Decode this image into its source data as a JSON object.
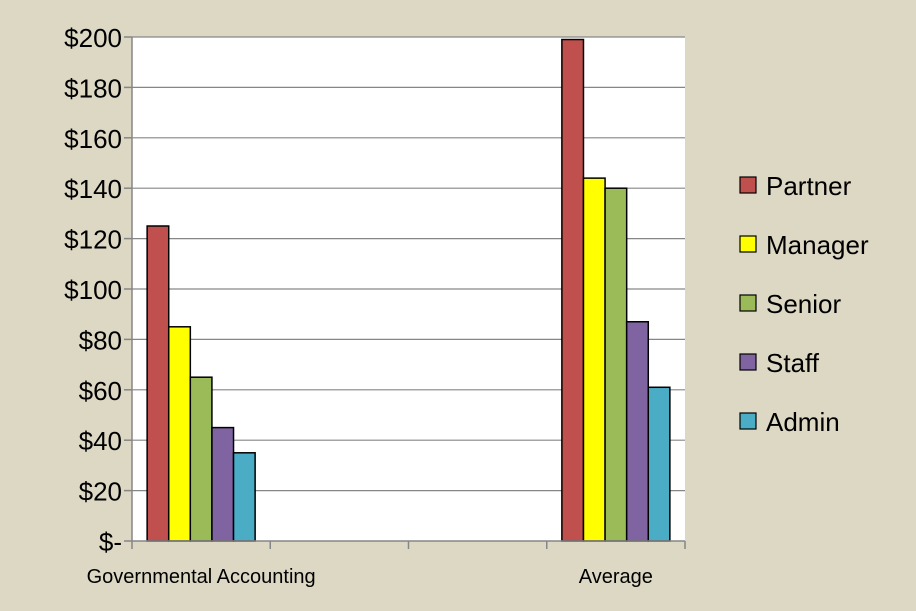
{
  "chart_data": {
    "type": "bar",
    "title": "",
    "xlabel": "",
    "ylabel": "",
    "categories": [
      "Governmental Accounting",
      "Average"
    ],
    "category_slots": [
      "Governmental Accounting",
      "",
      "",
      "Average"
    ],
    "series": [
      {
        "name": "Partner",
        "color": "#c0504d",
        "values": [
          125,
          199
        ]
      },
      {
        "name": "Manager",
        "color": "#ffff00",
        "values": [
          85,
          144
        ]
      },
      {
        "name": "Senior",
        "color": "#9bbb59",
        "values": [
          65,
          140
        ]
      },
      {
        "name": "Staff",
        "color": "#8064a2",
        "values": [
          45,
          87
        ]
      },
      {
        "name": "Admin",
        "color": "#4bacc6",
        "values": [
          35,
          61
        ]
      }
    ],
    "ylim": [
      0,
      200
    ],
    "yticks": [
      0,
      20,
      40,
      60,
      80,
      100,
      120,
      140,
      160,
      180,
      200
    ],
    "ytick_labels": [
      "$-",
      "$20",
      "$40",
      "$60",
      "$80",
      "$100",
      "$120",
      "$140",
      "$160",
      "$180",
      "$200"
    ],
    "grid": true,
    "legend_position": "right",
    "colors": {
      "background": "#ddd8c4",
      "plot_background": "#ffffff",
      "gridline": "#868686"
    }
  }
}
